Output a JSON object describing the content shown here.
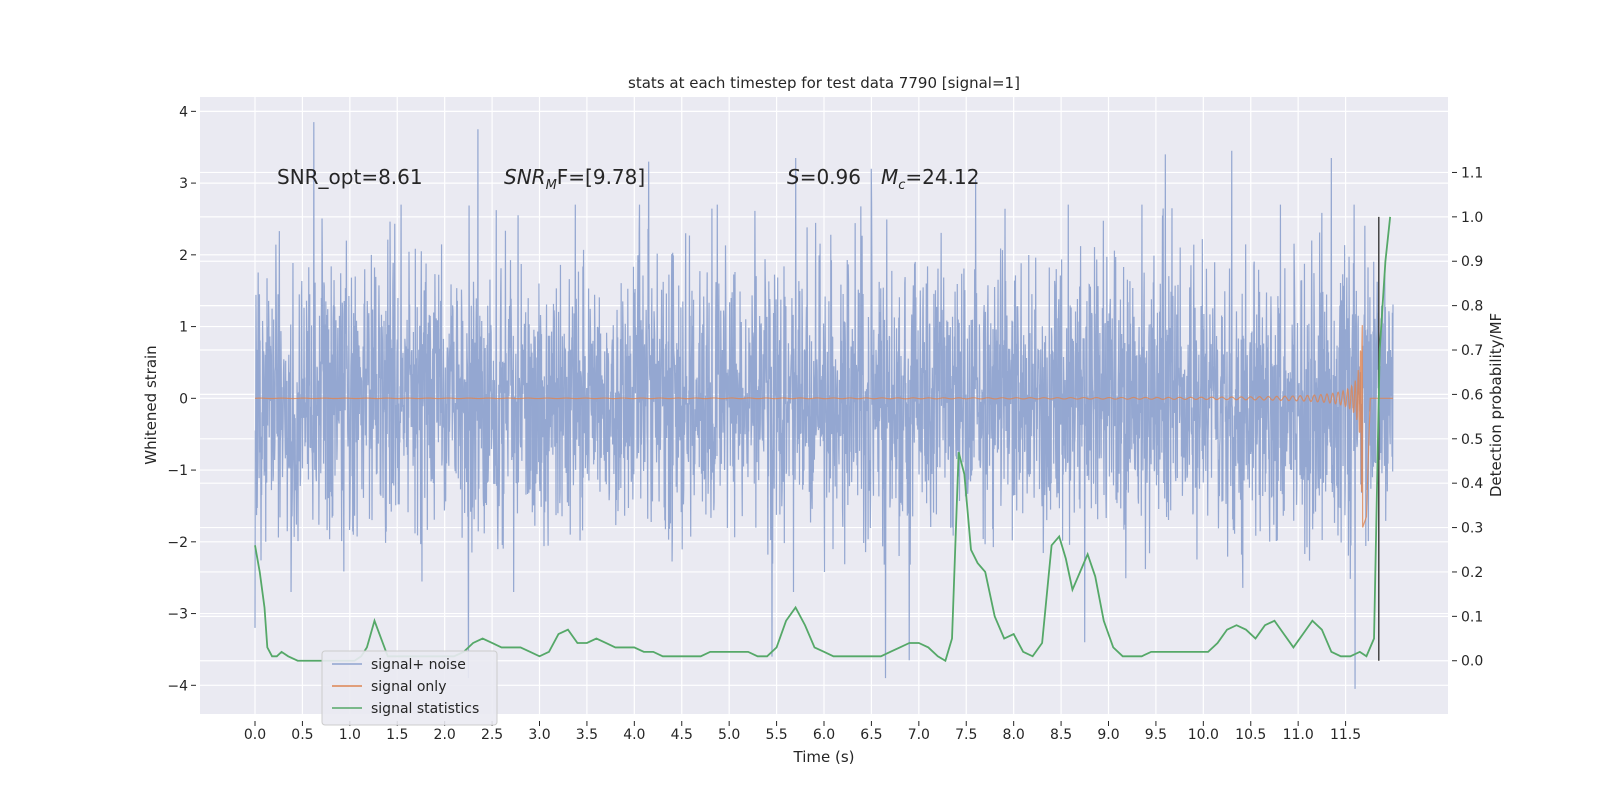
{
  "chart_data": {
    "type": "line",
    "title": "stats at each timestep for test data 7790 [signal=1]",
    "xlabel": "Time (s)",
    "ylabel": "Whitened strain",
    "y2label": "Detection probability/MF",
    "xlim": [
      -0.58,
      12.58
    ],
    "ylim": [
      -4.4,
      4.2
    ],
    "y2lim": [
      -0.12,
      1.27
    ],
    "x_ticks": [
      0.0,
      0.5,
      1.0,
      1.5,
      2.0,
      2.5,
      3.0,
      3.5,
      4.0,
      4.5,
      5.0,
      5.5,
      6.0,
      6.5,
      7.0,
      7.5,
      8.0,
      8.5,
      9.0,
      9.5,
      10.0,
      10.5,
      11.0,
      11.5
    ],
    "x_tick_labels": [
      "0.0",
      "0.5",
      "1.0",
      "1.5",
      "2.0",
      "2.5",
      "3.0",
      "3.5",
      "4.0",
      "4.5",
      "5.0",
      "5.5",
      "6.0",
      "6.5",
      "7.0",
      "7.5",
      "8.0",
      "8.5",
      "9.0",
      "9.5",
      "10.0",
      "10.5",
      "11.0",
      "11.5"
    ],
    "y_ticks": [
      -4,
      -3,
      -2,
      -1,
      0,
      1,
      2,
      3,
      4
    ],
    "y_tick_labels": [
      "−4",
      "−3",
      "−2",
      "−1",
      "0",
      "1",
      "2",
      "3",
      "4"
    ],
    "y2_ticks": [
      0.0,
      0.1,
      0.2,
      0.3,
      0.4,
      0.5,
      0.6,
      0.7,
      0.8,
      0.9,
      1.0,
      1.1
    ],
    "y2_tick_labels": [
      "0.0",
      "0.1",
      "0.2",
      "0.3",
      "0.4",
      "0.5",
      "0.6",
      "0.7",
      "0.8",
      "0.9",
      "1.0",
      "1.1"
    ],
    "grid": true,
    "legend_position": "bottom-left",
    "annotations": {
      "snr_opt": "SNR_opt=8.61",
      "snr_mf_main": "SNR",
      "snr_mf_sub": "M",
      "snr_mf_rest": "F=[9.78]",
      "s_main": "S",
      "s_rest": "=0.96",
      "mc_main": "M",
      "mc_sub": "c",
      "mc_rest": "=24.12"
    },
    "series": [
      {
        "name": "signal+ noise",
        "axis": "left",
        "color": "#8fa3cf",
        "x_range": [
          0.0,
          12.0
        ],
        "amplitude_typical": 1.0,
        "peaks": [
          [
            0.62,
            3.85
          ],
          [
            2.35,
            3.75
          ],
          [
            4.15,
            3.3
          ],
          [
            5.7,
            3.35
          ],
          [
            6.5,
            3.2
          ],
          [
            7.6,
            3.05
          ],
          [
            9.6,
            3.4
          ],
          [
            10.3,
            3.45
          ],
          [
            11.35,
            3.35
          ],
          [
            0.0,
            -3.2
          ],
          [
            2.25,
            -3.9
          ],
          [
            5.45,
            -3.6
          ],
          [
            6.65,
            -3.9
          ],
          [
            6.9,
            -3.65
          ],
          [
            8.75,
            -3.4
          ],
          [
            11.6,
            -4.05
          ]
        ]
      },
      {
        "name": "signal only",
        "axis": "left",
        "color": "#dd8452",
        "chirp_end": 11.68,
        "chirp_peak": 1.8
      },
      {
        "name": "signal statistics",
        "axis": "right",
        "color": "#55a868",
        "x": [
          0.0,
          0.05,
          0.1,
          0.13,
          0.18,
          0.23,
          0.28,
          0.35,
          0.45,
          0.55,
          0.65,
          0.75,
          0.85,
          0.95,
          1.05,
          1.12,
          1.18,
          1.26,
          1.33,
          1.4,
          1.46,
          1.52,
          1.6,
          1.7,
          1.8,
          1.9,
          2.0,
          2.1,
          2.2,
          2.3,
          2.4,
          2.5,
          2.6,
          2.7,
          2.8,
          2.9,
          3.0,
          3.1,
          3.2,
          3.3,
          3.4,
          3.5,
          3.6,
          3.7,
          3.8,
          3.9,
          4.0,
          4.1,
          4.2,
          4.3,
          4.4,
          4.5,
          4.6,
          4.7,
          4.8,
          4.9,
          5.0,
          5.1,
          5.2,
          5.3,
          5.4,
          5.5,
          5.6,
          5.7,
          5.8,
          5.9,
          6.0,
          6.1,
          6.2,
          6.3,
          6.4,
          6.5,
          6.6,
          6.7,
          6.8,
          6.9,
          7.0,
          7.1,
          7.2,
          7.28,
          7.35,
          7.42,
          7.48,
          7.55,
          7.62,
          7.7,
          7.8,
          7.9,
          8.0,
          8.1,
          8.2,
          8.3,
          8.4,
          8.48,
          8.55,
          8.62,
          8.7,
          8.78,
          8.86,
          8.95,
          9.05,
          9.15,
          9.25,
          9.35,
          9.45,
          9.55,
          9.65,
          9.75,
          9.85,
          9.95,
          10.05,
          10.15,
          10.25,
          10.35,
          10.45,
          10.55,
          10.65,
          10.75,
          10.85,
          10.95,
          11.05,
          11.15,
          11.25,
          11.35,
          11.45,
          11.55,
          11.65,
          11.72,
          11.8,
          11.86,
          11.92,
          11.97
        ],
        "values": [
          0.26,
          0.2,
          0.12,
          0.03,
          0.01,
          0.01,
          0.02,
          0.01,
          0.0,
          0.0,
          0.0,
          0.0,
          0.0,
          0.0,
          0.0,
          0.01,
          0.03,
          0.09,
          0.05,
          0.01,
          0.01,
          0.01,
          0.01,
          0.01,
          0.01,
          0.01,
          0.01,
          0.01,
          0.02,
          0.04,
          0.05,
          0.04,
          0.03,
          0.03,
          0.03,
          0.02,
          0.01,
          0.02,
          0.06,
          0.07,
          0.04,
          0.04,
          0.05,
          0.04,
          0.03,
          0.03,
          0.03,
          0.02,
          0.02,
          0.01,
          0.01,
          0.01,
          0.01,
          0.01,
          0.02,
          0.02,
          0.02,
          0.02,
          0.02,
          0.01,
          0.01,
          0.03,
          0.09,
          0.12,
          0.08,
          0.03,
          0.02,
          0.01,
          0.01,
          0.01,
          0.01,
          0.01,
          0.01,
          0.02,
          0.03,
          0.04,
          0.04,
          0.03,
          0.01,
          0.0,
          0.05,
          0.47,
          0.42,
          0.25,
          0.22,
          0.2,
          0.1,
          0.05,
          0.06,
          0.02,
          0.01,
          0.04,
          0.26,
          0.28,
          0.23,
          0.16,
          0.2,
          0.24,
          0.19,
          0.09,
          0.03,
          0.01,
          0.01,
          0.01,
          0.02,
          0.02,
          0.02,
          0.02,
          0.02,
          0.02,
          0.02,
          0.04,
          0.07,
          0.08,
          0.07,
          0.05,
          0.08,
          0.09,
          0.06,
          0.03,
          0.06,
          0.09,
          0.07,
          0.02,
          0.01,
          0.01,
          0.02,
          0.01,
          0.05,
          0.7,
          0.9,
          1.0
        ]
      }
    ],
    "vertical_marker": {
      "x": 11.85,
      "y2_range": [
        0.0,
        1.0
      ],
      "color": "#444444"
    }
  }
}
